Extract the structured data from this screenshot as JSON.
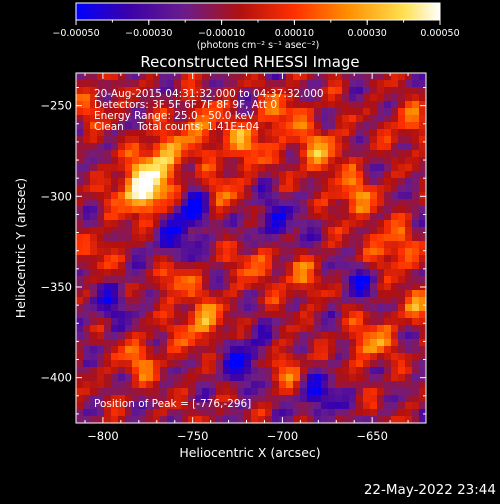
{
  "chart_data": {
    "type": "heatmap",
    "title": "Reconstructed RHESSI Image",
    "xlabel": "Heliocentric X (arcsec)",
    "ylabel": "Heliocentric Y (arcsec)",
    "xlim": [
      -815,
      -620
    ],
    "ylim": [
      -425,
      -232
    ],
    "x_ticks": [
      -800,
      -750,
      -700,
      -650
    ],
    "y_ticks": [
      -250,
      -300,
      -350,
      -400
    ],
    "x_tick_labels": [
      "−800",
      "−750",
      "−700",
      "−650"
    ],
    "y_tick_labels": [
      "−250",
      "−300",
      "−350",
      "−400"
    ],
    "colorbar": {
      "range": [
        -0.0005,
        0.0005
      ],
      "ticks": [
        -0.0005,
        -0.0003,
        -0.0001,
        0.0001,
        0.0003,
        0.0005
      ],
      "tick_labels": [
        "−0.00050",
        "−0.00030",
        "−0.00010",
        "0.00010",
        "0.00030",
        "0.00050"
      ],
      "label": "(photons cm⁻² s⁻¹ asec⁻²)",
      "colormap": [
        "#0000ff",
        "#3a00aa",
        "#6a1d8a",
        "#b01010",
        "#ff3000",
        "#ff9000",
        "#ffe050",
        "#ffffff"
      ]
    },
    "annotations": {
      "time_range": "20-Aug-2015 04:31:32.000 to 04:37:32.000",
      "detectors": "Detectors: 3F 5F 6F 7F 8F 9F, Att 0",
      "energy_range": "Energy Range: 25.0 - 50.0 keV",
      "clean_counts": "Clean    Total counts: 1.41E+04",
      "peak_position": "Position of Peak = [-776,-296]"
    },
    "peak": {
      "x": -776,
      "y": -296
    },
    "grid": false
  },
  "footer": {
    "date": "22-May-2022 23:44"
  }
}
